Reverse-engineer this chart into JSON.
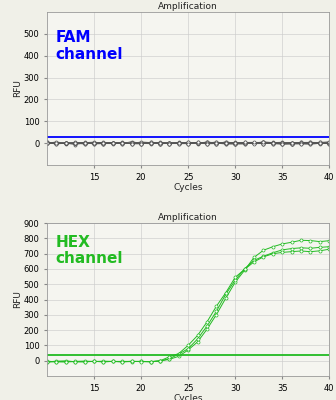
{
  "title": "Amplification",
  "xlabel": "Cycles",
  "ylabel": "RFU",
  "fam_label": "FAM\nchannel",
  "hex_label": "HEX\nchannel",
  "fam_color": "#0000ff",
  "hex_color": "#22bb22",
  "fam_ylim": [
    -100,
    600
  ],
  "hex_ylim": [
    -100,
    900
  ],
  "fam_yticks": [
    0,
    100,
    200,
    300,
    400,
    500
  ],
  "hex_yticks": [
    0,
    100,
    200,
    300,
    400,
    500,
    600,
    700,
    800,
    900
  ],
  "xlim": [
    10,
    40
  ],
  "xticks": [
    15,
    20,
    25,
    30,
    35,
    40
  ],
  "fam_threshold": 28,
  "hex_threshold": 35,
  "background_color": "#f5f5f0",
  "grid_color": "#cccccc",
  "fig_bg": "#f0f0e8"
}
